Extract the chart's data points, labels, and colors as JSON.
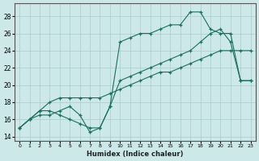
{
  "xlabel": "Humidex (Indice chaleur)",
  "bg_color": "#cce8e8",
  "grid_color": "#aacccc",
  "line_color": "#1a7060",
  "xlim": [
    -0.5,
    23.5
  ],
  "ylim": [
    13.5,
    29.5
  ],
  "xticks": [
    0,
    1,
    2,
    3,
    4,
    5,
    6,
    7,
    8,
    9,
    10,
    11,
    12,
    13,
    14,
    15,
    16,
    17,
    18,
    19,
    20,
    21,
    22,
    23
  ],
  "yticks": [
    14,
    16,
    18,
    20,
    22,
    24,
    26,
    28
  ],
  "line1_x": [
    0,
    1,
    2,
    3,
    4,
    5,
    6,
    7,
    8,
    9,
    10,
    11,
    12,
    13,
    14,
    15,
    16,
    17,
    18,
    19,
    20,
    21,
    22,
    23
  ],
  "line1_y": [
    15,
    16,
    16.5,
    16.5,
    17,
    17.5,
    16.5,
    14.5,
    15,
    17.5,
    25,
    25.5,
    26,
    26,
    26.5,
    27,
    27,
    28.5,
    28.5,
    26.5,
    26,
    26,
    20.5,
    20.5
  ],
  "line2_x": [
    0,
    1,
    2,
    3,
    4,
    5,
    6,
    7,
    8,
    9,
    10,
    11,
    12,
    13,
    14,
    15,
    16,
    17,
    18,
    19,
    20,
    21,
    22,
    23
  ],
  "line2_y": [
    15,
    16,
    17,
    17,
    16.5,
    16,
    15.5,
    15,
    15,
    17.5,
    20.5,
    21,
    21.5,
    22,
    22.5,
    23,
    23.5,
    24,
    25,
    26,
    26.5,
    25,
    20.5,
    20.5
  ],
  "line3_x": [
    0,
    1,
    2,
    3,
    4,
    5,
    6,
    7,
    8,
    9,
    10,
    11,
    12,
    13,
    14,
    15,
    16,
    17,
    18,
    19,
    20,
    21,
    22,
    23
  ],
  "line3_y": [
    15,
    16,
    17,
    18,
    18.5,
    18.5,
    18.5,
    18.5,
    18.5,
    19,
    19.5,
    20,
    20.5,
    21,
    21.5,
    21.5,
    22,
    22.5,
    23,
    23.5,
    24,
    24,
    24,
    24
  ]
}
